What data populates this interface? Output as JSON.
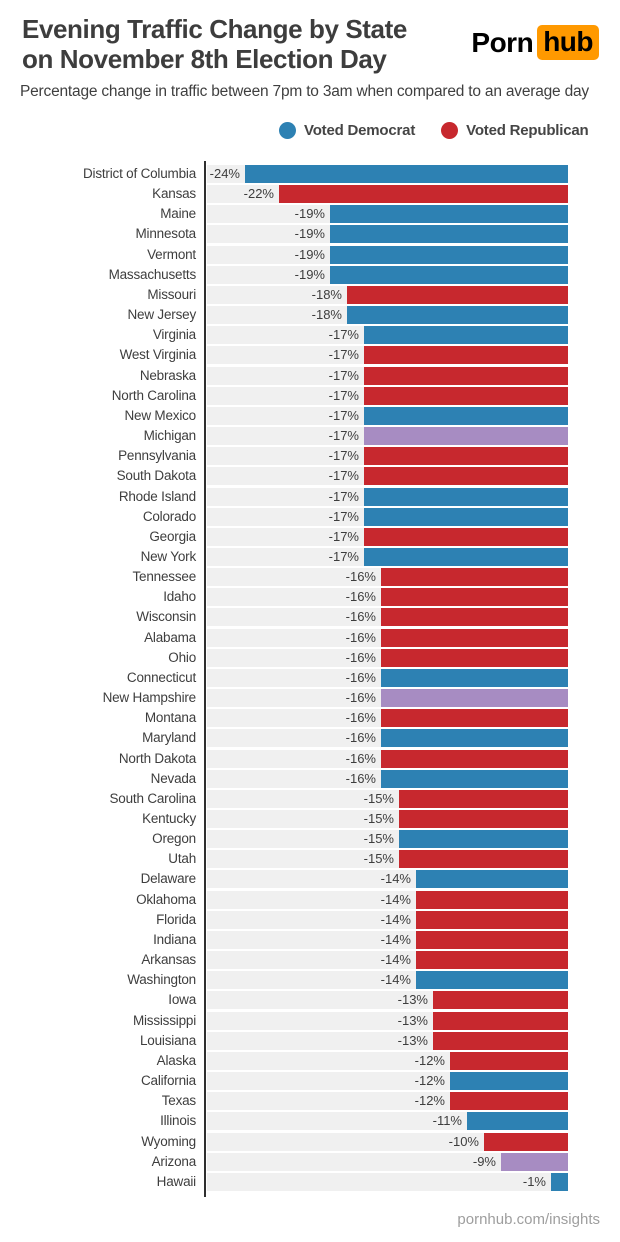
{
  "header": {
    "title_line1": "Evening Traffic Change by State",
    "title_line2": "on November 8th Election Day",
    "subtitle": "Percentage change in traffic between 7pm to 3am when compared to an average day",
    "logo": {
      "part1": "Porn",
      "part2": "hub",
      "accent_color": "#ff9900"
    }
  },
  "legend": [
    {
      "key": "democrat",
      "label": "Voted Democrat",
      "color": "#2d81b3"
    },
    {
      "key": "republican",
      "label": "Voted Republican",
      "color": "#c7282e"
    }
  ],
  "colors": {
    "democrat": "#2d81b3",
    "republican": "#c7282e",
    "undecided": "#a78cc2",
    "row_band": "#f0f0f0",
    "axis": "#2f2f2f"
  },
  "footer": {
    "text": "pornhub.com/insights"
  },
  "chart_data": {
    "type": "bar",
    "orientation": "horizontal",
    "title": "Evening Traffic Change by State on November 8th Election Day",
    "xlabel": "Percentage change in traffic between 7pm to 3am when compared to an average day",
    "value_unit": "percent",
    "legend_position": "top",
    "grid": false,
    "rows": [
      {
        "state": "District of Columbia",
        "value": -24,
        "label": "-24%",
        "party": "democrat"
      },
      {
        "state": "Kansas",
        "value": -22,
        "label": "-22%",
        "party": "republican"
      },
      {
        "state": "Maine",
        "value": -19,
        "label": "-19%",
        "party": "democrat"
      },
      {
        "state": "Minnesota",
        "value": -19,
        "label": "-19%",
        "party": "democrat"
      },
      {
        "state": "Vermont",
        "value": -19,
        "label": "-19%",
        "party": "democrat"
      },
      {
        "state": "Massachusetts",
        "value": -19,
        "label": "-19%",
        "party": "democrat"
      },
      {
        "state": "Missouri",
        "value": -18,
        "label": "-18%",
        "party": "republican"
      },
      {
        "state": "New Jersey",
        "value": -18,
        "label": "-18%",
        "party": "democrat"
      },
      {
        "state": "Virginia",
        "value": -17,
        "label": "-17%",
        "party": "democrat"
      },
      {
        "state": "West Virginia",
        "value": -17,
        "label": "-17%",
        "party": "republican"
      },
      {
        "state": "Nebraska",
        "value": -17,
        "label": "-17%",
        "party": "republican"
      },
      {
        "state": "North Carolina",
        "value": -17,
        "label": "-17%",
        "party": "republican"
      },
      {
        "state": "New Mexico",
        "value": -17,
        "label": "-17%",
        "party": "democrat"
      },
      {
        "state": "Michigan",
        "value": -17,
        "label": "-17%",
        "party": "undecided"
      },
      {
        "state": "Pennsylvania",
        "value": -17,
        "label": "-17%",
        "party": "republican"
      },
      {
        "state": "South Dakota",
        "value": -17,
        "label": "-17%",
        "party": "republican"
      },
      {
        "state": "Rhode Island",
        "value": -17,
        "label": "-17%",
        "party": "democrat"
      },
      {
        "state": "Colorado",
        "value": -17,
        "label": "-17%",
        "party": "democrat"
      },
      {
        "state": "Georgia",
        "value": -17,
        "label": "-17%",
        "party": "republican"
      },
      {
        "state": "New York",
        "value": -17,
        "label": "-17%",
        "party": "democrat"
      },
      {
        "state": "Tennessee",
        "value": -16,
        "label": "-16%",
        "party": "republican"
      },
      {
        "state": "Idaho",
        "value": -16,
        "label": "-16%",
        "party": "republican"
      },
      {
        "state": "Wisconsin",
        "value": -16,
        "label": "-16%",
        "party": "republican"
      },
      {
        "state": "Alabama",
        "value": -16,
        "label": "-16%",
        "party": "republican"
      },
      {
        "state": "Ohio",
        "value": -16,
        "label": "-16%",
        "party": "republican"
      },
      {
        "state": "Connecticut",
        "value": -16,
        "label": "-16%",
        "party": "democrat"
      },
      {
        "state": "New Hampshire",
        "value": -16,
        "label": "-16%",
        "party": "undecided"
      },
      {
        "state": "Montana",
        "value": -16,
        "label": "-16%",
        "party": "republican"
      },
      {
        "state": "Maryland",
        "value": -16,
        "label": "-16%",
        "party": "democrat"
      },
      {
        "state": "North Dakota",
        "value": -16,
        "label": "-16%",
        "party": "republican"
      },
      {
        "state": "Nevada",
        "value": -16,
        "label": "-16%",
        "party": "democrat"
      },
      {
        "state": "South Carolina",
        "value": -15,
        "label": "-15%",
        "party": "republican"
      },
      {
        "state": "Kentucky",
        "value": -15,
        "label": "-15%",
        "party": "republican"
      },
      {
        "state": "Oregon",
        "value": -15,
        "label": "-15%",
        "party": "democrat"
      },
      {
        "state": "Utah",
        "value": -15,
        "label": "-15%",
        "party": "republican"
      },
      {
        "state": "Delaware",
        "value": -14,
        "label": "-14%",
        "party": "democrat"
      },
      {
        "state": "Oklahoma",
        "value": -14,
        "label": "-14%",
        "party": "republican"
      },
      {
        "state": "Florida",
        "value": -14,
        "label": "-14%",
        "party": "republican"
      },
      {
        "state": "Indiana",
        "value": -14,
        "label": "-14%",
        "party": "republican"
      },
      {
        "state": "Arkansas",
        "value": -14,
        "label": "-14%",
        "party": "republican"
      },
      {
        "state": "Washington",
        "value": -14,
        "label": "-14%",
        "party": "democrat"
      },
      {
        "state": "Iowa",
        "value": -13,
        "label": "-13%",
        "party": "republican"
      },
      {
        "state": "Mississippi",
        "value": -13,
        "label": "-13%",
        "party": "republican"
      },
      {
        "state": "Louisiana",
        "value": -13,
        "label": "-13%",
        "party": "republican"
      },
      {
        "state": "Alaska",
        "value": -12,
        "label": "-12%",
        "party": "republican"
      },
      {
        "state": "California",
        "value": -12,
        "label": "-12%",
        "party": "democrat"
      },
      {
        "state": "Texas",
        "value": -12,
        "label": "-12%",
        "party": "republican"
      },
      {
        "state": "Illinois",
        "value": -11,
        "label": "-11%",
        "party": "democrat"
      },
      {
        "state": "Wyoming",
        "value": -10,
        "label": "-10%",
        "party": "republican"
      },
      {
        "state": "Arizona",
        "value": -9,
        "label": "-9%",
        "party": "undecided"
      },
      {
        "state": "Hawaii",
        "value": -1,
        "label": "-1%",
        "party": "democrat"
      }
    ]
  }
}
